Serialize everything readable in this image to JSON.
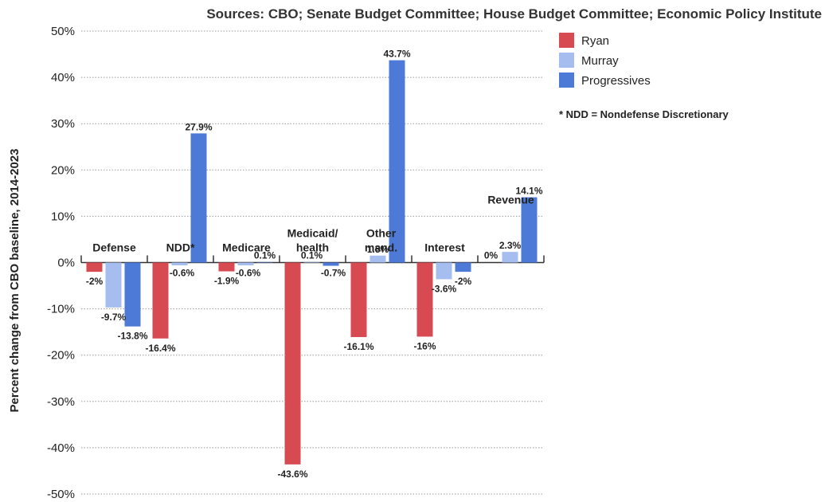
{
  "chart_data": {
    "type": "bar",
    "title": "Sources: CBO; Senate Budget Committee; House Budget Committee; Economic Policy Institute",
    "ylabel": "Percent change from CBO baseline, 2014-2023",
    "xlabel": "",
    "ylim": [
      -50,
      50
    ],
    "yticks": [
      "50%",
      "40%",
      "30%",
      "20%",
      "10%",
      "0%",
      "-10%",
      "-20%",
      "-30%",
      "-40%",
      "-50%"
    ],
    "ytick_values": [
      50,
      40,
      30,
      20,
      10,
      0,
      -10,
      -20,
      -30,
      -40,
      -50
    ],
    "grid": true,
    "legend_position": "top-right",
    "categories": [
      "Defense",
      "NDD*",
      "Medicare",
      "Medicaid/\nhealth",
      "Other\nmand.",
      "Interest",
      "Revenue"
    ],
    "series": [
      {
        "name": "Ryan",
        "color": "#d84a52",
        "values": [
          -2,
          -16.4,
          -1.9,
          -43.6,
          -16.1,
          -16,
          0
        ],
        "labels": [
          "-2%",
          "-16.4%",
          "-1.9%",
          "-43.6%",
          "-16.1%",
          "-16%",
          "0%"
        ]
      },
      {
        "name": "Murray",
        "color": "#a6bdf0",
        "values": [
          -9.7,
          -0.6,
          -0.6,
          0.1,
          1.5,
          -3.6,
          2.3
        ],
        "labels": [
          "-9.7%",
          "-0.6%",
          "-0.6%",
          "0.1%",
          "1.5%",
          "-3.6%",
          "2.3%"
        ]
      },
      {
        "name": "Progressives",
        "color": "#4c7ad6",
        "values": [
          -13.8,
          27.9,
          0.1,
          -0.7,
          43.7,
          -2,
          14.1
        ],
        "labels": [
          "-13.8%",
          "27.9%",
          "0.1%",
          "-0.7%",
          "43.7%",
          "-2%",
          "14.1%"
        ]
      }
    ],
    "note": "* NDD = Nondefense Discretionary"
  }
}
